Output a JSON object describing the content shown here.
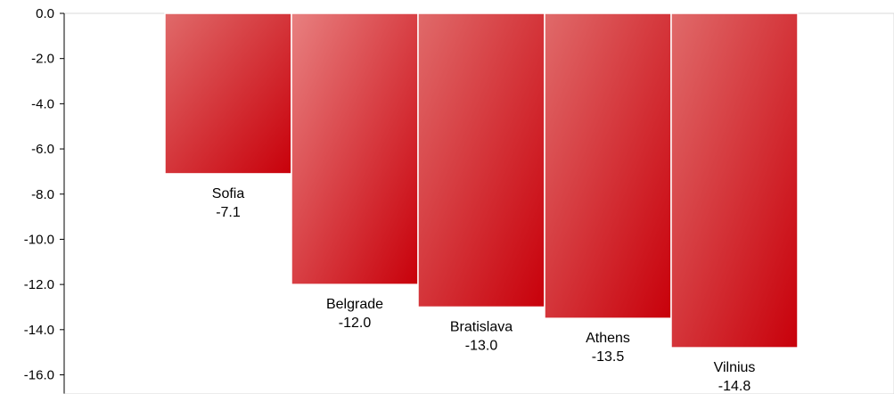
{
  "chart_data": {
    "type": "bar",
    "title": "",
    "xlabel": "",
    "ylabel": "",
    "ylim": [
      -16,
      0
    ],
    "yticks": [
      0,
      -2,
      -4,
      -6,
      -8,
      -10,
      -12,
      -14,
      -16
    ],
    "ytick_labels": [
      "0.0",
      "-2.0",
      "-4.0",
      "-6.0",
      "-8.0",
      "-10.0",
      "-12.0",
      "-14.0",
      "-16.0"
    ],
    "grid": false,
    "categories": [
      "Sofia",
      "Belgrade",
      "Bratislava",
      "Athens",
      "Vilnius"
    ],
    "values": [
      -7.1,
      -12.0,
      -13.0,
      -13.5,
      -14.8
    ],
    "value_labels": [
      "-7.1",
      "-12.0",
      "-13.0",
      "-13.5",
      "-14.8"
    ],
    "colors": {
      "bar_dark": "#c8000a",
      "bar_light": "#e57373",
      "axis": "#000000"
    }
  }
}
